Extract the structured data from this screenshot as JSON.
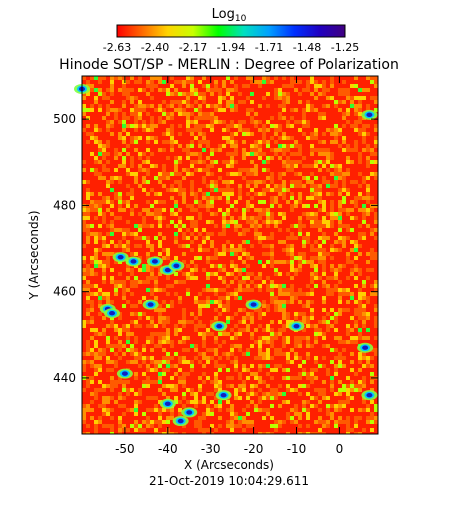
{
  "chart_data": {
    "type": "heatmap",
    "title": "Hinode SOT/SP - MERLIN : Degree of Polarization",
    "xlabel": "X (Arcseconds)",
    "ylabel": "Y (Arcseconds)",
    "xlim": [
      -60,
      9
    ],
    "ylim": [
      427,
      510
    ],
    "x_ticks": [
      -50,
      -40,
      -30,
      -20,
      -10,
      0
    ],
    "y_ticks": [
      440,
      460,
      480,
      500
    ],
    "timestamp": "21-Oct-2019 10:04:29.611",
    "colorbar": {
      "label_main": "Log",
      "label_sub": "10",
      "ticks": [
        "-2.63",
        "-2.40",
        "-2.17",
        "-1.94",
        "-1.71",
        "-1.48",
        "-1.25"
      ],
      "range": [
        -2.63,
        -1.25
      ],
      "colors": [
        "#ff0000",
        "#ff6a00",
        "#ffd400",
        "#c8ff00",
        "#00ff00",
        "#00e0c0",
        "#00a0ff",
        "#0030ff",
        "#2000c0",
        "#400080"
      ]
    },
    "hotspots": [
      {
        "x": -60,
        "y": 507
      },
      {
        "x": 7,
        "y": 501
      },
      {
        "x": -51,
        "y": 468
      },
      {
        "x": -48,
        "y": 467
      },
      {
        "x": -43,
        "y": 467
      },
      {
        "x": -40,
        "y": 465
      },
      {
        "x": -38,
        "y": 466
      },
      {
        "x": -54,
        "y": 456
      },
      {
        "x": -53,
        "y": 455
      },
      {
        "x": -40,
        "y": 434
      },
      {
        "x": -35,
        "y": 432
      },
      {
        "x": -37,
        "y": 430
      },
      {
        "x": 7,
        "y": 436
      },
      {
        "x": -27,
        "y": 436
      },
      {
        "x": -50,
        "y": 441
      },
      {
        "x": 6,
        "y": 447
      },
      {
        "x": -10,
        "y": 452
      },
      {
        "x": -20,
        "y": 457
      },
      {
        "x": -28,
        "y": 452
      },
      {
        "x": -44,
        "y": 457
      }
    ]
  }
}
